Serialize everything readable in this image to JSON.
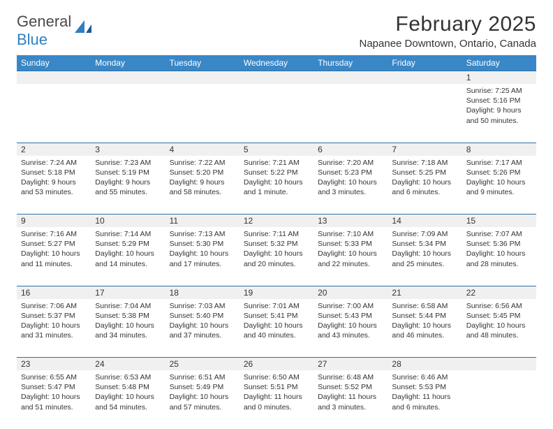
{
  "logo": {
    "text1": "General",
    "text2": "Blue"
  },
  "header": {
    "month_title": "February 2025",
    "location": "Napanee Downtown, Ontario, Canada"
  },
  "colors": {
    "header_bg": "#3a87c7",
    "header_text": "#ffffff",
    "grid_line": "#2f6ea5",
    "daynum_bg": "#f0f0f0",
    "text": "#333333",
    "logo_blue": "#2f7fc1"
  },
  "day_headers": [
    "Sunday",
    "Monday",
    "Tuesday",
    "Wednesday",
    "Thursday",
    "Friday",
    "Saturday"
  ],
  "weeks": [
    [
      null,
      null,
      null,
      null,
      null,
      null,
      {
        "n": "1",
        "sunrise": "7:25 AM",
        "sunset": "5:16 PM",
        "daylight": "9 hours and 50 minutes."
      }
    ],
    [
      {
        "n": "2",
        "sunrise": "7:24 AM",
        "sunset": "5:18 PM",
        "daylight": "9 hours and 53 minutes."
      },
      {
        "n": "3",
        "sunrise": "7:23 AM",
        "sunset": "5:19 PM",
        "daylight": "9 hours and 55 minutes."
      },
      {
        "n": "4",
        "sunrise": "7:22 AM",
        "sunset": "5:20 PM",
        "daylight": "9 hours and 58 minutes."
      },
      {
        "n": "5",
        "sunrise": "7:21 AM",
        "sunset": "5:22 PM",
        "daylight": "10 hours and 1 minute."
      },
      {
        "n": "6",
        "sunrise": "7:20 AM",
        "sunset": "5:23 PM",
        "daylight": "10 hours and 3 minutes."
      },
      {
        "n": "7",
        "sunrise": "7:18 AM",
        "sunset": "5:25 PM",
        "daylight": "10 hours and 6 minutes."
      },
      {
        "n": "8",
        "sunrise": "7:17 AM",
        "sunset": "5:26 PM",
        "daylight": "10 hours and 9 minutes."
      }
    ],
    [
      {
        "n": "9",
        "sunrise": "7:16 AM",
        "sunset": "5:27 PM",
        "daylight": "10 hours and 11 minutes."
      },
      {
        "n": "10",
        "sunrise": "7:14 AM",
        "sunset": "5:29 PM",
        "daylight": "10 hours and 14 minutes."
      },
      {
        "n": "11",
        "sunrise": "7:13 AM",
        "sunset": "5:30 PM",
        "daylight": "10 hours and 17 minutes."
      },
      {
        "n": "12",
        "sunrise": "7:11 AM",
        "sunset": "5:32 PM",
        "daylight": "10 hours and 20 minutes."
      },
      {
        "n": "13",
        "sunrise": "7:10 AM",
        "sunset": "5:33 PM",
        "daylight": "10 hours and 22 minutes."
      },
      {
        "n": "14",
        "sunrise": "7:09 AM",
        "sunset": "5:34 PM",
        "daylight": "10 hours and 25 minutes."
      },
      {
        "n": "15",
        "sunrise": "7:07 AM",
        "sunset": "5:36 PM",
        "daylight": "10 hours and 28 minutes."
      }
    ],
    [
      {
        "n": "16",
        "sunrise": "7:06 AM",
        "sunset": "5:37 PM",
        "daylight": "10 hours and 31 minutes."
      },
      {
        "n": "17",
        "sunrise": "7:04 AM",
        "sunset": "5:38 PM",
        "daylight": "10 hours and 34 minutes."
      },
      {
        "n": "18",
        "sunrise": "7:03 AM",
        "sunset": "5:40 PM",
        "daylight": "10 hours and 37 minutes."
      },
      {
        "n": "19",
        "sunrise": "7:01 AM",
        "sunset": "5:41 PM",
        "daylight": "10 hours and 40 minutes."
      },
      {
        "n": "20",
        "sunrise": "7:00 AM",
        "sunset": "5:43 PM",
        "daylight": "10 hours and 43 minutes."
      },
      {
        "n": "21",
        "sunrise": "6:58 AM",
        "sunset": "5:44 PM",
        "daylight": "10 hours and 46 minutes."
      },
      {
        "n": "22",
        "sunrise": "6:56 AM",
        "sunset": "5:45 PM",
        "daylight": "10 hours and 48 minutes."
      }
    ],
    [
      {
        "n": "23",
        "sunrise": "6:55 AM",
        "sunset": "5:47 PM",
        "daylight": "10 hours and 51 minutes."
      },
      {
        "n": "24",
        "sunrise": "6:53 AM",
        "sunset": "5:48 PM",
        "daylight": "10 hours and 54 minutes."
      },
      {
        "n": "25",
        "sunrise": "6:51 AM",
        "sunset": "5:49 PM",
        "daylight": "10 hours and 57 minutes."
      },
      {
        "n": "26",
        "sunrise": "6:50 AM",
        "sunset": "5:51 PM",
        "daylight": "11 hours and 0 minutes."
      },
      {
        "n": "27",
        "sunrise": "6:48 AM",
        "sunset": "5:52 PM",
        "daylight": "11 hours and 3 minutes."
      },
      {
        "n": "28",
        "sunrise": "6:46 AM",
        "sunset": "5:53 PM",
        "daylight": "11 hours and 6 minutes."
      },
      null
    ]
  ],
  "labels": {
    "sunrise": "Sunrise:",
    "sunset": "Sunset:",
    "daylight": "Daylight:"
  }
}
